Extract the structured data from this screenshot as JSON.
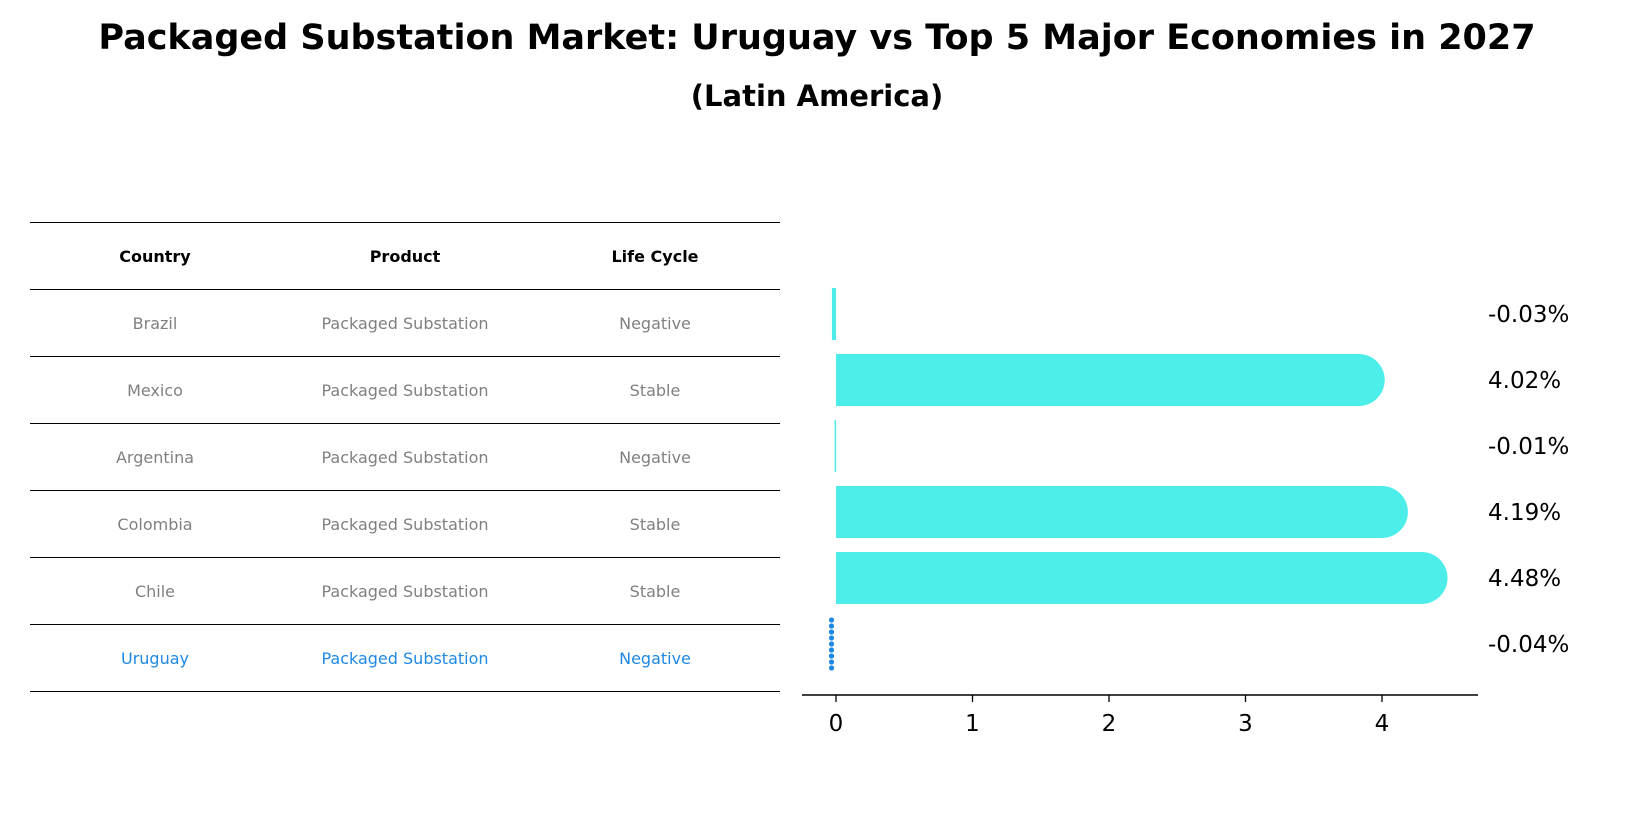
{
  "title": "Packaged Substation Market: Uruguay vs Top 5 Major Economies in 2027",
  "subtitle": "(Latin America)",
  "table": {
    "headers": [
      "Country",
      "Product",
      "Life Cycle"
    ],
    "rows": [
      {
        "country": "Brazil",
        "product": "Packaged Substation",
        "life_cycle": "Negative"
      },
      {
        "country": "Mexico",
        "product": "Packaged Substation",
        "life_cycle": "Stable"
      },
      {
        "country": "Argentina",
        "product": "Packaged Substation",
        "life_cycle": "Negative"
      },
      {
        "country": "Colombia",
        "product": "Packaged Substation",
        "life_cycle": "Stable"
      },
      {
        "country": "Chile",
        "product": "Packaged Substation",
        "life_cycle": "Stable"
      },
      {
        "country": "Uruguay",
        "product": "Packaged Substation",
        "life_cycle": "Negative"
      }
    ]
  },
  "chart_data": {
    "type": "bar",
    "orientation": "horizontal",
    "title": "Packaged Substation Market: Uruguay vs Top 5 Major Economies in 2027",
    "subtitle": "(Latin America)",
    "categories": [
      "Brazil",
      "Mexico",
      "Argentina",
      "Colombia",
      "Chile",
      "Uruguay"
    ],
    "values": [
      -0.03,
      4.02,
      -0.01,
      4.19,
      4.48,
      -0.04
    ],
    "value_labels": [
      "-0.03%",
      "4.02%",
      "-0.01%",
      "4.19%",
      "4.48%",
      "-0.04%"
    ],
    "x_ticks": [
      0,
      1,
      2,
      3,
      4
    ],
    "xlim": [
      -0.25,
      4.7
    ],
    "xlabel": "",
    "ylabel": "",
    "grid": false,
    "colors": {
      "bar": "#4deeea",
      "highlight": "#1e88e5"
    },
    "highlight_category": "Uruguay"
  }
}
